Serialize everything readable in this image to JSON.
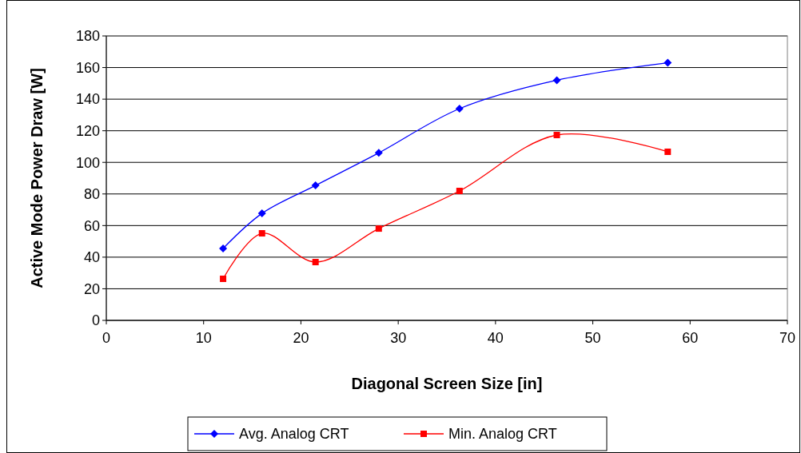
{
  "chart_data": {
    "type": "line",
    "xlabel": "Diagonal Screen Size [in]",
    "ylabel": "Active Mode Power Draw [W]",
    "xlim": [
      0,
      70
    ],
    "xticks": [
      0,
      10,
      20,
      30,
      40,
      50,
      60,
      70
    ],
    "ylim": [
      0,
      180
    ],
    "yticks": [
      0,
      20,
      40,
      60,
      80,
      100,
      120,
      140,
      160,
      180
    ],
    "grid": "y",
    "legend": "bottom",
    "line_style": "solid",
    "series": [
      {
        "name": "Avg. Analog CRT",
        "color": "#0000ff",
        "marker": "diamond",
        "x": [
          12,
          16,
          21.5,
          28,
          36.3,
          46.3,
          57.7
        ],
        "values": [
          45.5,
          67.7,
          85.4,
          106,
          134,
          152,
          163
        ]
      },
      {
        "name": "Min. Analog CRT",
        "color": "#ff0000",
        "marker": "square",
        "x": [
          12,
          16,
          21.5,
          28,
          36.3,
          46.3,
          57.7
        ],
        "values": [
          26.3,
          55.1,
          36.9,
          58.1,
          81.9,
          117.3,
          106.7
        ]
      }
    ]
  }
}
